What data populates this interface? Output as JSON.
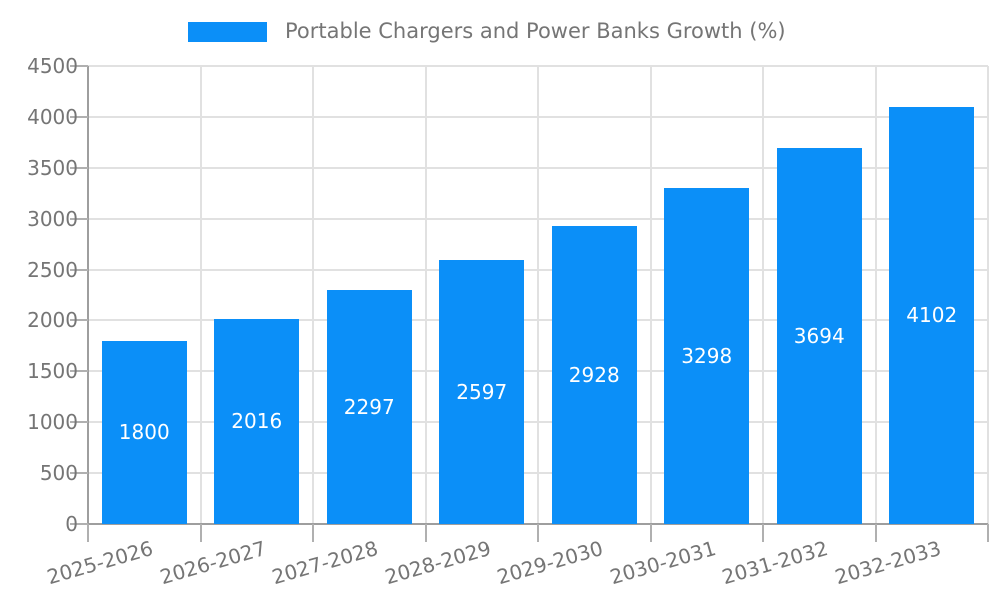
{
  "legend": {
    "label": "Portable Chargers and Power Banks Growth (%)"
  },
  "colors": {
    "bar": "#0B8FF8",
    "grid": "#E1E1E1",
    "axis": "#9E9E9E",
    "tick": "#B0B0B0",
    "tick_text": "#757575",
    "value_text": "#FFFFFF"
  },
  "chart_data": {
    "type": "bar",
    "title": "Portable Chargers and Power Banks Growth (%)",
    "categories": [
      "2025-2026",
      "2026-2027",
      "2027-2028",
      "2028-2029",
      "2029-2030",
      "2030-2031",
      "2031-2032",
      "2032-2033"
    ],
    "values": [
      1800,
      2016,
      2297,
      2597,
      2928,
      3298,
      3694,
      4102
    ],
    "xlabel": "",
    "ylabel": "",
    "ylim": [
      0,
      4500
    ],
    "yticks": [
      0,
      500,
      1000,
      1500,
      2000,
      2500,
      3000,
      3500,
      4000,
      4500
    ],
    "grid": true,
    "legend_position": "top",
    "value_labels": "inside-center"
  }
}
